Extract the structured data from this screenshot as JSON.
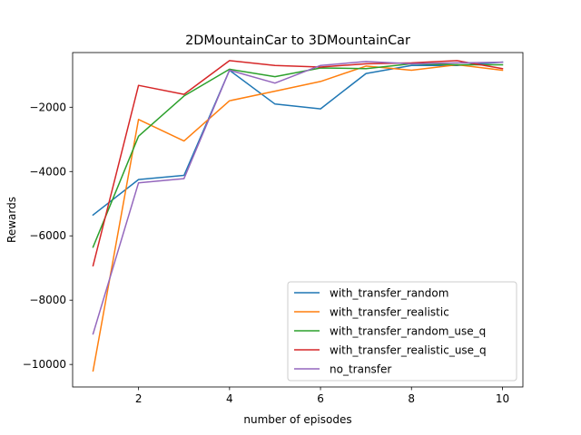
{
  "chart_data": {
    "type": "line",
    "title": "2DMountainCar to 3DMountainCar",
    "xlabel": "number of episodes",
    "ylabel": "Rewards",
    "x": [
      1,
      2,
      3,
      4,
      5,
      6,
      7,
      8,
      9,
      10
    ],
    "xlim": [
      0.55,
      10.45
    ],
    "ylim": [
      -10700,
      -300
    ],
    "xticks": [
      2,
      4,
      6,
      8,
      10
    ],
    "yticks": [
      -10000,
      -8000,
      -6000,
      -4000,
      -2000
    ],
    "ytick_labels": [
      "−10000",
      "−8000",
      "−6000",
      "−4000",
      "−2000"
    ],
    "grid": false,
    "legend_position": "lower-right",
    "series": [
      {
        "name": "with_transfer_random",
        "color": "#1f77b4",
        "values": [
          -5350,
          -4250,
          -4120,
          -850,
          -1900,
          -2050,
          -950,
          -700,
          -700,
          -600
        ]
      },
      {
        "name": "with_transfer_realistic",
        "color": "#ff7f0e",
        "values": [
          -10200,
          -2380,
          -3050,
          -1800,
          -1500,
          -1200,
          -720,
          -850,
          -680,
          -850
        ]
      },
      {
        "name": "with_transfer_random_use_q",
        "color": "#2ca02c",
        "values": [
          -6350,
          -2900,
          -1650,
          -820,
          -1050,
          -780,
          -800,
          -650,
          -680,
          -680
        ]
      },
      {
        "name": "with_transfer_realistic_use_q",
        "color": "#d62728",
        "values": [
          -6930,
          -1320,
          -1600,
          -550,
          -700,
          -750,
          -650,
          -620,
          -550,
          -800
        ]
      },
      {
        "name": "no_transfer",
        "color": "#9467bd",
        "values": [
          -9050,
          -4350,
          -4220,
          -850,
          -1250,
          -700,
          -580,
          -650,
          -620,
          -600
        ]
      }
    ]
  }
}
